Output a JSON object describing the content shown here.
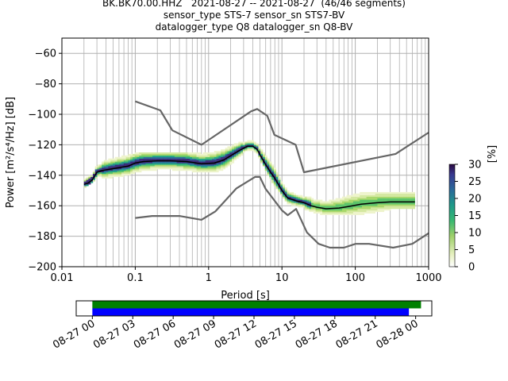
{
  "title_lines": [
    "BK.BK70.00.HHZ   2021-08-27 -- 2021-08-27  (46/46 segments)",
    "sensor_type STS-7 sensor_sn STS7-BV",
    "datalogger_type Q8 datalogger_sn Q8-BV"
  ],
  "chart_data": [
    {
      "type": "heatmap",
      "xlabel": "Period [s]",
      "ylabel": "Power [m²/s⁴/Hz] [dB]",
      "xscale": "log",
      "xlim": [
        0.01,
        1000
      ],
      "ylim": [
        -200,
        -50
      ],
      "xticks": [
        0.01,
        0.1,
        1,
        10,
        100,
        1000
      ],
      "xtick_labels": [
        "0.01",
        "0.1",
        "1",
        "10",
        "100",
        "1000"
      ],
      "yticks": [
        -200,
        -180,
        -160,
        -140,
        -120,
        -100,
        -80,
        -60
      ],
      "ytick_labels": [
        "−200",
        "−180",
        "−160",
        "−140",
        "−120",
        "−100",
        "−80",
        "−60"
      ],
      "grid": true,
      "colorbar": {
        "label": "[%]",
        "range": [
          0,
          30
        ],
        "ticks": [
          0,
          5,
          10,
          15,
          20,
          25,
          30
        ],
        "tick_labels": [
          "0",
          "5",
          "10",
          "15",
          "20",
          "25",
          "30"
        ]
      },
      "series": [
        {
          "role": "high_noise_model",
          "color": "#666666",
          "x": [
            0.1,
            0.22,
            0.32,
            0.8,
            3.8,
            4.6,
            6.3,
            7.9,
            15.4,
            20,
            354.8,
            1000
          ],
          "y": [
            -91.5,
            -97.4,
            -110.5,
            -120,
            -98,
            -96.5,
            -101,
            -113.5,
            -120,
            -138,
            -126,
            -112
          ]
        },
        {
          "role": "low_noise_model",
          "color": "#666666",
          "x": [
            0.1,
            0.17,
            0.4,
            0.8,
            1.24,
            2.4,
            4.3,
            5,
            6,
            10,
            12,
            15.6,
            21.9,
            31.6,
            45,
            70,
            101,
            154,
            328,
            600,
            1000
          ],
          "y": [
            -168,
            -166.7,
            -166.7,
            -169.2,
            -163.7,
            -148.6,
            -141.1,
            -141.1,
            -149,
            -163,
            -166.2,
            -162.1,
            -177.5,
            -185,
            -187.5,
            -187.5,
            -185,
            -185,
            -187.5,
            -185,
            -178
          ]
        },
        {
          "role": "mode",
          "color": "#000000",
          "x": [
            0.02,
            0.023,
            0.026,
            0.03,
            0.035,
            0.045,
            0.06,
            0.08,
            0.1,
            0.13,
            0.2,
            0.3,
            0.5,
            0.8,
            1.2,
            1.6,
            2.2,
            2.8,
            3.4,
            4.0,
            4.6,
            5.2,
            6,
            7,
            8,
            10,
            12,
            14,
            16,
            20,
            25,
            30,
            40,
            60,
            80,
            120,
            200,
            300,
            500,
            650
          ],
          "y": [
            -146,
            -145,
            -143,
            -138,
            -137,
            -136,
            -135,
            -134,
            -132,
            -131,
            -130.5,
            -130.5,
            -131,
            -132.5,
            -132,
            -130,
            -126,
            -123,
            -121,
            -121,
            -123,
            -128,
            -133,
            -138,
            -142,
            -150,
            -155,
            -156,
            -157,
            -158,
            -160,
            -161,
            -162,
            -161.5,
            -160.5,
            -159,
            -158,
            -157.5,
            -157.5,
            -157.5
          ]
        },
        {
          "role": "spread_upper",
          "x": [
            0.02,
            0.03,
            0.05,
            0.1,
            0.2,
            0.4,
            0.8,
            1.5,
            2.5,
            3.5,
            4.5,
            6,
            8,
            12,
            20,
            40,
            80,
            150,
            300,
            650
          ],
          "y": [
            -144,
            -133,
            -130,
            -127,
            -126,
            -126,
            -127,
            -125,
            -120,
            -118,
            -118,
            -122,
            -132,
            -148,
            -155,
            -157,
            -153,
            -151,
            -150,
            -150
          ]
        },
        {
          "role": "spread_lower",
          "x": [
            0.02,
            0.03,
            0.05,
            0.1,
            0.2,
            0.4,
            0.8,
            1.5,
            2.5,
            3.5,
            4.5,
            6,
            8,
            12,
            20,
            40,
            80,
            150,
            300,
            650
          ],
          "y": [
            -148,
            -142,
            -141,
            -139,
            -137,
            -137,
            -138,
            -137,
            -129,
            -125,
            -125,
            -136,
            -147,
            -158,
            -163,
            -166,
            -166,
            -165,
            -162,
            -162
          ]
        }
      ]
    },
    {
      "type": "bar",
      "description_role": "data availability timeline",
      "xticks": [
        "08-27 00",
        "08-27 03",
        "08-27 06",
        "08-27 09",
        "08-27 12",
        "08-27 15",
        "08-27 18",
        "08-27 21",
        "08-28 00"
      ],
      "xtick_hours": [
        0,
        3,
        6,
        9,
        12,
        15,
        18,
        21,
        24
      ],
      "xlim_hours": [
        -1.2,
        25.2
      ],
      "bars": [
        {
          "color": "#008000",
          "start_hour": 0.0,
          "end_hour": 24.4
        },
        {
          "color": "#0000ff",
          "start_hour": 0.0,
          "end_hour": 23.5
        }
      ]
    }
  ]
}
